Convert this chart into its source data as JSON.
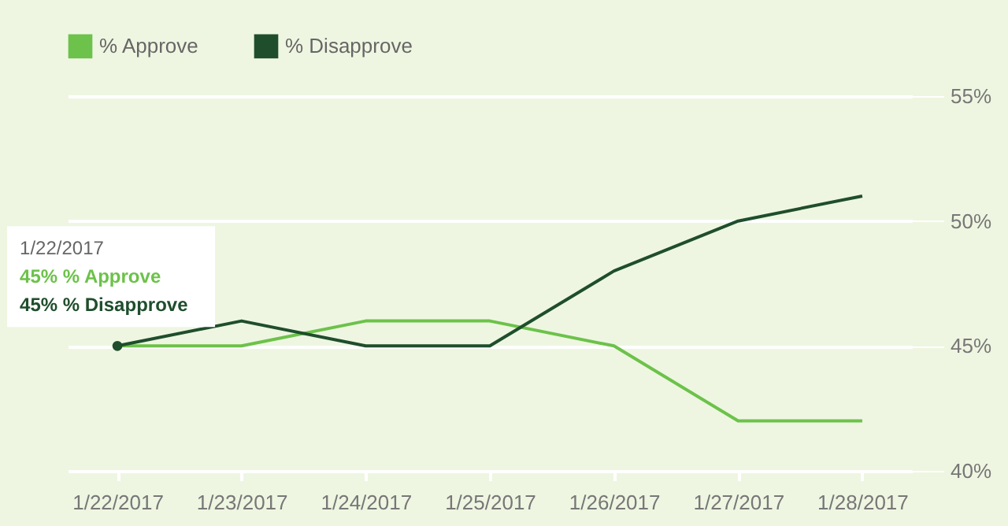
{
  "chart_data": {
    "type": "line",
    "categories": [
      "1/22/2017",
      "1/23/2017",
      "1/24/2017",
      "1/25/2017",
      "1/26/2017",
      "1/27/2017",
      "1/28/2017"
    ],
    "series": [
      {
        "name": "% Approve",
        "color": "#6cc24a",
        "values": [
          45,
          45,
          46,
          46,
          45,
          42,
          42
        ]
      },
      {
        "name": "% Disapprove",
        "color": "#1f4e2c",
        "values": [
          45,
          46,
          45,
          45,
          48,
          50,
          51
        ]
      }
    ],
    "ylim": [
      40,
      55
    ],
    "yticks": [
      {
        "value": 40,
        "label": "40%"
      },
      {
        "value": 45,
        "label": "45%"
      },
      {
        "value": 50,
        "label": "50%"
      },
      {
        "value": 55,
        "label": "55%"
      }
    ],
    "grid": "y",
    "legend": "top left",
    "marker": "none",
    "line_style": "solid",
    "annotations": [
      "1/22/2017",
      "45% % Approve",
      "45% % Disapprove"
    ]
  }
}
